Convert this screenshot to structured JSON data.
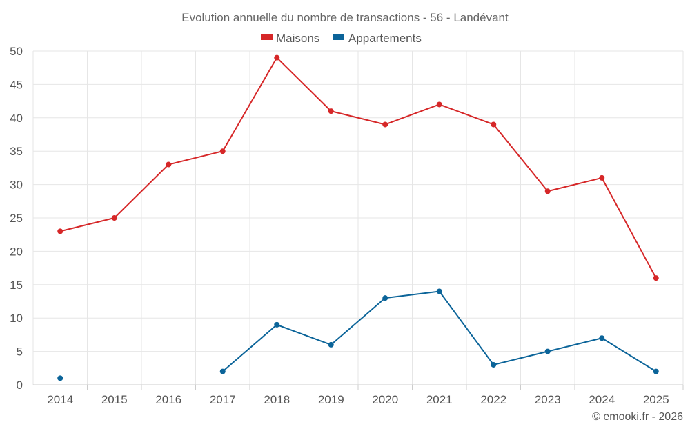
{
  "chart_data": {
    "type": "line",
    "title": "Evolution annuelle du nombre de transactions - 56 - Landévant",
    "categories": [
      "2014",
      "2015",
      "2016",
      "2017",
      "2018",
      "2019",
      "2020",
      "2021",
      "2022",
      "2023",
      "2024",
      "2025"
    ],
    "series": [
      {
        "name": "Maisons",
        "color": "#d62728",
        "values": [
          23,
          25,
          33,
          35,
          49,
          41,
          39,
          42,
          39,
          29,
          31,
          16
        ]
      },
      {
        "name": "Appartements",
        "color": "#0b6499",
        "values": [
          1,
          null,
          null,
          2,
          9,
          6,
          13,
          14,
          3,
          5,
          7,
          2
        ]
      }
    ],
    "yticks": [
      0,
      5,
      10,
      15,
      20,
      25,
      30,
      35,
      40,
      45,
      50
    ],
    "ylim": [
      0,
      50
    ],
    "xlabel": "",
    "ylabel": "",
    "grid": true,
    "legend": "top-center",
    "credit": "© emooki.fr - 2026"
  }
}
